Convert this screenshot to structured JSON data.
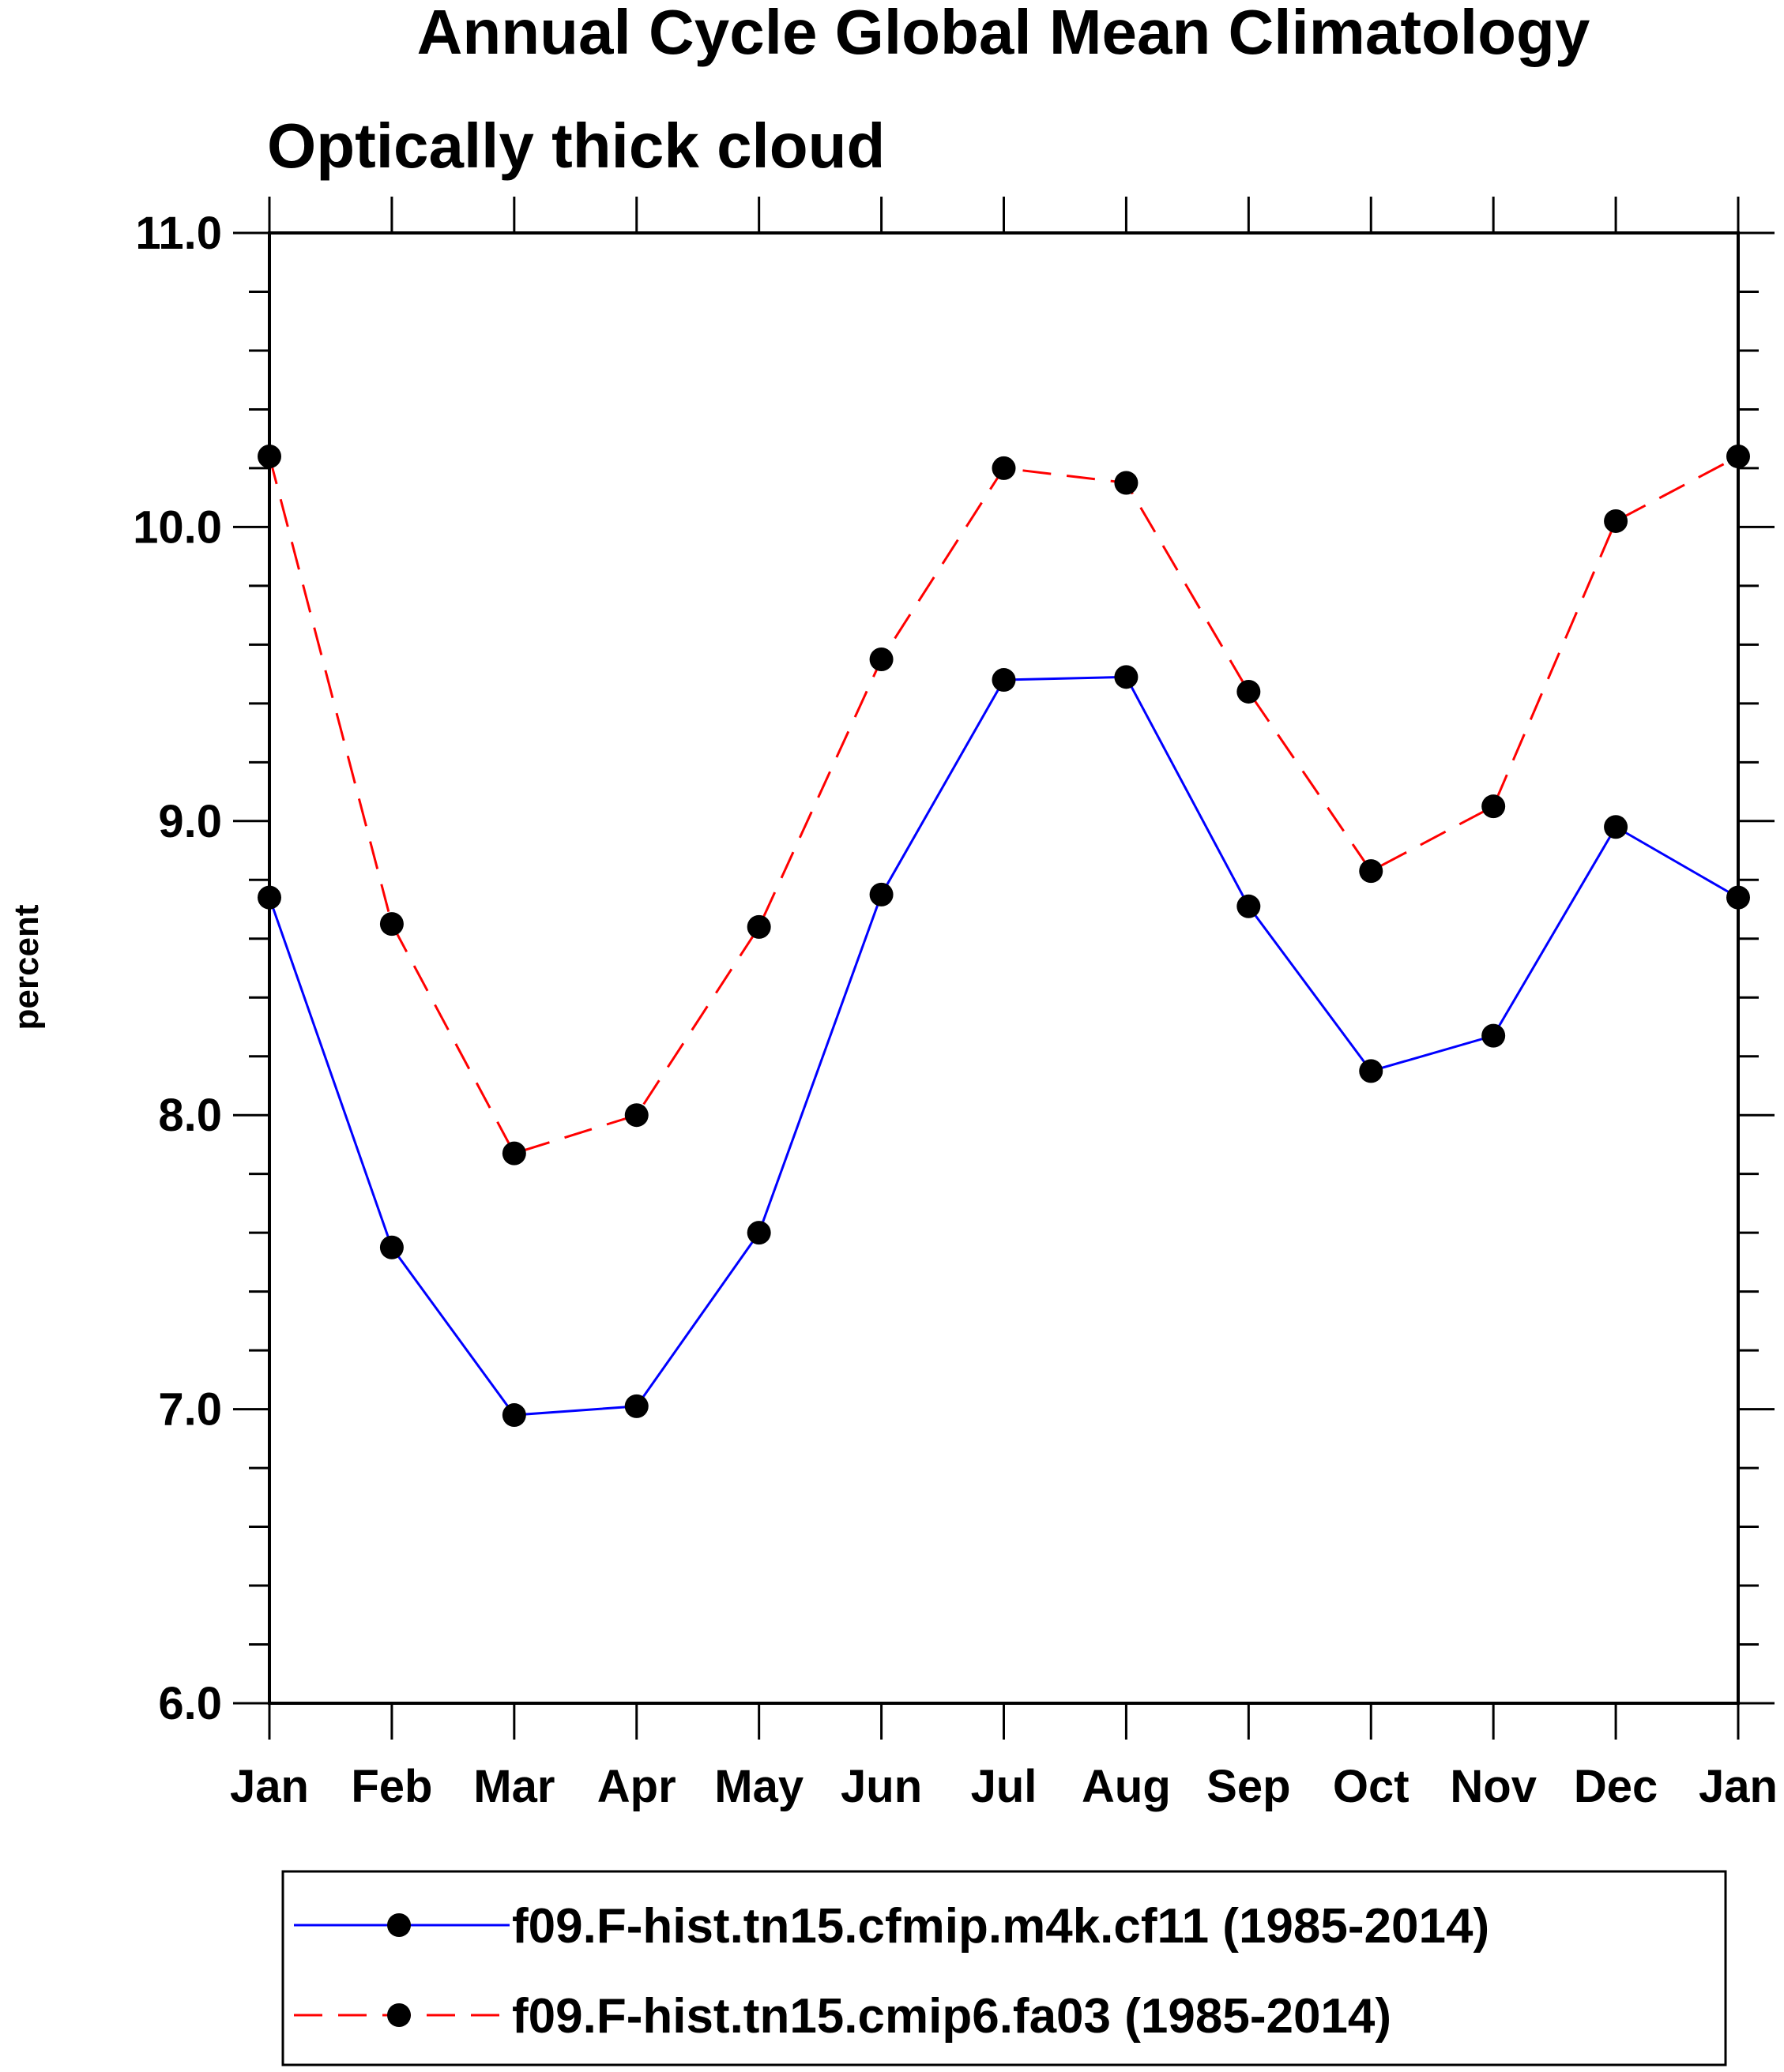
{
  "chart_data": {
    "type": "line",
    "title": "Annual Cycle Global Mean Climatology",
    "subtitle": "Optically thick cloud",
    "xlabel": "",
    "ylabel": "percent",
    "categories": [
      "Jan",
      "Feb",
      "Mar",
      "Apr",
      "May",
      "Jun",
      "Jul",
      "Aug",
      "Sep",
      "Oct",
      "Nov",
      "Dec",
      "Jan"
    ],
    "ylim": [
      6.0,
      11.0
    ],
    "yticks": [
      "6.0",
      "7.0",
      "8.0",
      "9.0",
      "10.0",
      "11.0"
    ],
    "grid": false,
    "legend_position": "bottom",
    "series": [
      {
        "name": "f09.F-hist.tn15.cfmip.m4k.cf11 (1985-2014)",
        "color": "#0000ff",
        "dash": "solid",
        "values": [
          8.74,
          7.55,
          6.98,
          7.01,
          7.6,
          8.75,
          9.48,
          9.49,
          8.71,
          8.15,
          8.27,
          8.98,
          8.74
        ]
      },
      {
        "name": "f09.F-hist.tn15.cmip6.fa03 (1985-2014)",
        "color": "#ff0000",
        "dash": "dashed",
        "values": [
          10.24,
          8.65,
          7.87,
          8.0,
          8.64,
          9.55,
          10.2,
          10.15,
          9.44,
          8.83,
          9.05,
          10.02,
          10.24
        ]
      }
    ]
  }
}
